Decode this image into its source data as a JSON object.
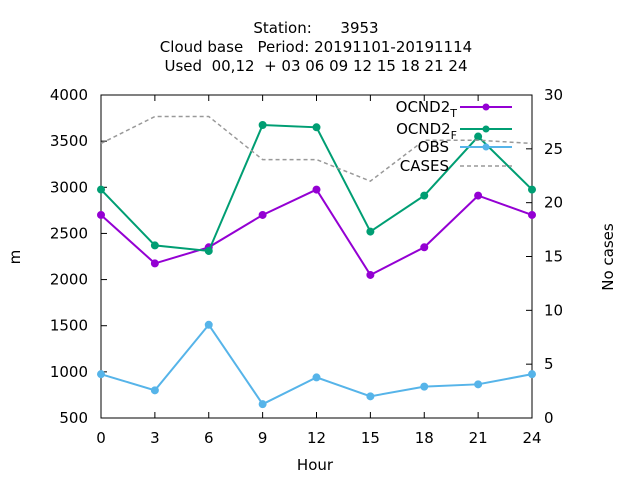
{
  "chart_data": {
    "type": "line",
    "title_lines": [
      "Station:      3953",
      "Cloud base   Period: 20191101-20191114",
      "Used  00,12  + 03 06 09 12 15 18 21 24"
    ],
    "xlabel": "Hour",
    "ylabel": "m",
    "y2label": "No cases",
    "x": [
      0,
      3,
      6,
      9,
      12,
      15,
      18,
      21,
      24
    ],
    "xlim": [
      0,
      24
    ],
    "ylim": [
      500,
      4000
    ],
    "y2lim": [
      0,
      30
    ],
    "xticks": [
      0,
      3,
      6,
      9,
      12,
      15,
      18,
      21,
      24
    ],
    "yticks": [
      500,
      1000,
      1500,
      2000,
      2500,
      3000,
      3500,
      4000
    ],
    "y2ticks": [
      0,
      5,
      10,
      15,
      20,
      25,
      30
    ],
    "grid": false,
    "legend_position": "top-right",
    "series": [
      {
        "name": "OCND2",
        "subscript": "T",
        "color": "#9400d3",
        "axis": "left",
        "marker": "circle",
        "values": [
          2700,
          2175,
          2350,
          2700,
          2975,
          2050,
          2350,
          2910,
          2700
        ]
      },
      {
        "name": "OCND2",
        "subscript": "F",
        "color": "#009e73",
        "axis": "left",
        "marker": "circle",
        "values": [
          2975,
          2370,
          2310,
          3675,
          3650,
          2520,
          2910,
          3550,
          2975
        ]
      },
      {
        "name": "OBS",
        "subscript": "",
        "color": "#56b4e9",
        "axis": "left",
        "marker": "circle",
        "values": [
          975,
          800,
          1510,
          650,
          940,
          735,
          840,
          865,
          975
        ]
      },
      {
        "name": "CASES",
        "subscript": "",
        "color": "#999999",
        "axis": "right",
        "dashed": true,
        "marker": "none",
        "values": [
          25.5,
          28,
          28,
          24,
          24,
          22,
          25.8,
          25.8,
          25.5
        ]
      }
    ]
  }
}
